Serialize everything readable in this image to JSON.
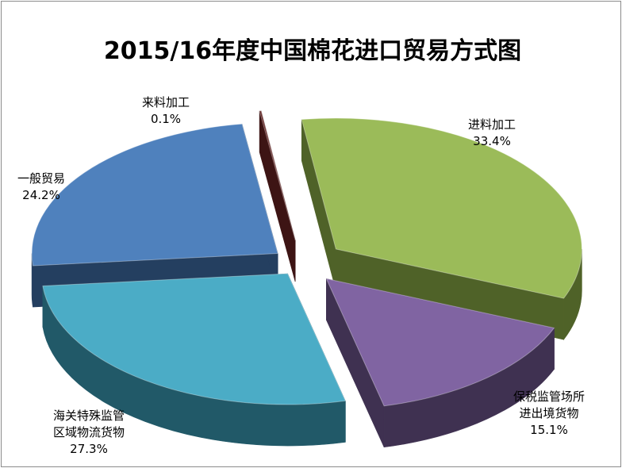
{
  "chart_data": {
    "type": "pie",
    "title": "2015/16年度中国棉花进口贸易方式图",
    "slices": [
      {
        "label": "进料加工",
        "label_lines": [
          "进料加工"
        ],
        "value": 33.4,
        "value_label": "33.4%",
        "color": "#9bbb59",
        "side_color": "#4f6228"
      },
      {
        "label": "保税监管场所进出境货物",
        "label_lines": [
          "保税监管场所",
          "进出境货物"
        ],
        "value": 15.1,
        "value_label": "15.1%",
        "color": "#8064a2",
        "side_color": "#3f3151"
      },
      {
        "label": "海关特殊监管区域物流货物",
        "label_lines": [
          "海关特殊监管",
          "区域物流货物"
        ],
        "value": 27.3,
        "value_label": "27.3%",
        "color": "#4bacc6",
        "side_color": "#215968"
      },
      {
        "label": "一般贸易",
        "label_lines": [
          "一般贸易"
        ],
        "value": 24.2,
        "value_label": "24.2%",
        "color": "#4f81bd",
        "side_color": "#243f60"
      },
      {
        "label": "来料加工",
        "label_lines": [
          "来料加工"
        ],
        "value": 0.1,
        "value_label": "0.1%",
        "color": "#632423",
        "side_color": "#3d1414"
      }
    ],
    "exploded": true,
    "three_d": true
  }
}
